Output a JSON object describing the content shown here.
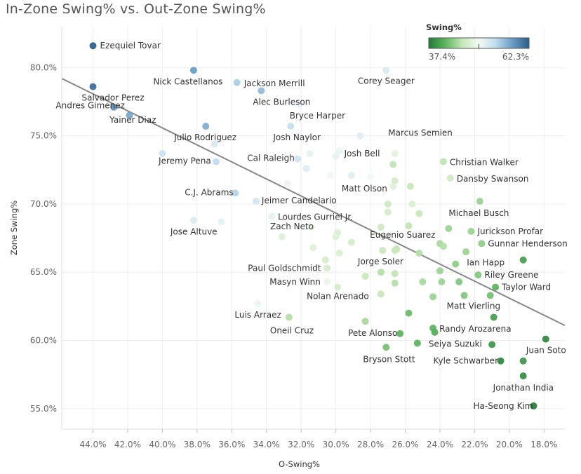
{
  "title": "In-Zone Swing% vs. Out-Zone Swing%",
  "chart_data": {
    "type": "scatter",
    "title": "In-Zone Swing% vs. Out-Zone Swing%",
    "xlabel": "O-Swing%",
    "ylabel": "Zone Swing%",
    "x_reversed": true,
    "xlim": [
      45.8,
      16.8
    ],
    "ylim": [
      53.5,
      83.0
    ],
    "x_ticks": [
      44,
      42,
      40,
      38,
      36,
      34,
      32,
      30,
      28,
      26,
      24,
      22,
      20,
      18
    ],
    "x_tick_labels": [
      "44.0%",
      "42.0%",
      "40.0%",
      "38.0%",
      "36.0%",
      "34.0%",
      "32.0%",
      "30.0%",
      "28.0%",
      "26.0%",
      "24.0%",
      "22.0%",
      "20.0%",
      "18.0%"
    ],
    "y_ticks": [
      55,
      60,
      65,
      70,
      75,
      80
    ],
    "y_tick_labels": [
      "55.0%",
      "60.0%",
      "65.0%",
      "70.0%",
      "75.0%",
      "80.0%"
    ],
    "grid": true,
    "color_legend": {
      "title": "Swing%",
      "min": 37.4,
      "max": 62.3,
      "min_label": "37.4%",
      "max_label": "62.3%",
      "colors": [
        "#1f7a35",
        "#5fb660",
        "#c6e7b8",
        "#f4f9f4",
        "#bfdcee",
        "#6a9cc5",
        "#2d5c8a"
      ]
    },
    "trend_line": {
      "x1": 45.8,
      "y1": 79.2,
      "x2": 16.8,
      "y2": 61.1,
      "color": "#888888"
    },
    "points": [
      {
        "name": "Ezequiel Tovar",
        "x": 44.0,
        "y": 81.6,
        "swing": 62.0
      },
      {
        "name": "Nick Castellanos",
        "x": 38.2,
        "y": 79.8,
        "swing": 58.0
      },
      {
        "name": "Jackson Merrill",
        "x": 35.7,
        "y": 78.9,
        "swing": 55.0
      },
      {
        "name": "Corey Seager",
        "x": 27.1,
        "y": 79.8,
        "swing": 52.0
      },
      {
        "name": "Alec Burleson",
        "x": 34.3,
        "y": 78.3,
        "swing": 56.0
      },
      {
        "name": "Salvador Perez",
        "x": 44.0,
        "y": 78.6,
        "swing": 61.0
      },
      {
        "name": "Bryce Harper",
        "x": 32.1,
        "y": 77.3,
        "swing": 51.0
      },
      {
        "name": "Yainer Diaz",
        "x": 42.8,
        "y": 77.1,
        "swing": 58.5
      },
      {
        "name": "Andres Gimenez",
        "x": 41.9,
        "y": 76.5,
        "swing": 57.5
      },
      {
        "name": "Marcus Semien",
        "x": 28.6,
        "y": 75.0,
        "swing": 51.5
      },
      {
        "name": "Josh Naylor",
        "x": 32.6,
        "y": 75.7,
        "swing": 53.5
      },
      {
        "name": "Julio Rodriguez",
        "x": 37.5,
        "y": 75.7,
        "swing": 57.0
      },
      {
        "name": "Cal Raleigh",
        "x": 32.2,
        "y": 73.3,
        "swing": 52.5
      },
      {
        "name": "Josh Bell",
        "x": 30.0,
        "y": 73.5,
        "swing": 51.0
      },
      {
        "name": "Christian Walker",
        "x": 23.8,
        "y": 73.1,
        "swing": 45.5
      },
      {
        "name": "Dansby Swanson",
        "x": 23.4,
        "y": 71.9,
        "swing": 46.5
      },
      {
        "name": "Jeremy Pena",
        "x": 36.9,
        "y": 73.1,
        "swing": 54.0
      },
      {
        "name": "Matt Olson",
        "x": 29.1,
        "y": 72.1,
        "swing": 51.5
      },
      {
        "name": "C.J. Abrams",
        "x": 35.8,
        "y": 70.8,
        "swing": 54.5
      },
      {
        "name": "Jeimer Candelario",
        "x": 34.6,
        "y": 70.2,
        "swing": 52.5
      },
      {
        "name": "Lourdes Gurriel Jr.",
        "x": 33.7,
        "y": 69.1,
        "swing": 51.0
      },
      {
        "name": "Michael Busch",
        "x": 23.5,
        "y": 68.2,
        "swing": 44.0
      },
      {
        "name": "Jose Altuve",
        "x": 38.2,
        "y": 68.8,
        "swing": 52.0
      },
      {
        "name": "Zach Neto",
        "x": 31.4,
        "y": 68.3,
        "swing": 48.5
      },
      {
        "name": "Jurickson Profar",
        "x": 22.2,
        "y": 68.0,
        "swing": 44.0
      },
      {
        "name": "Eugenio Suarez",
        "x": 26.5,
        "y": 66.7,
        "swing": 45.5
      },
      {
        "name": "Gunnar Henderson",
        "x": 21.6,
        "y": 67.1,
        "swing": 43.5
      },
      {
        "name": "Ian Happ",
        "x": 23.1,
        "y": 65.6,
        "swing": 43.5
      },
      {
        "name": "Jorge Soler",
        "x": 27.4,
        "y": 65.0,
        "swing": 45.0
      },
      {
        "name": "Paul Goldschmidt",
        "x": 30.5,
        "y": 65.3,
        "swing": 47.0
      },
      {
        "name": "Riley Greene",
        "x": 21.8,
        "y": 64.8,
        "swing": 43.0
      },
      {
        "name": "Masyn Winn",
        "x": 30.5,
        "y": 64.3,
        "swing": 49.0
      },
      {
        "name": "Taylor Ward",
        "x": 20.8,
        "y": 63.9,
        "swing": 41.5
      },
      {
        "name": "Nolan Arenado",
        "x": 29.9,
        "y": 63.9,
        "swing": 47.0
      },
      {
        "name": "Matt Vierling",
        "x": 21.1,
        "y": 63.3,
        "swing": 42.5
      },
      {
        "name": "Luis Arraez",
        "x": 34.5,
        "y": 62.7,
        "swing": 50.5
      },
      {
        "name": "Oneil Cruz",
        "x": 32.7,
        "y": 61.7,
        "swing": 45.0
      },
      {
        "name": "Randy Arozarena",
        "x": 24.4,
        "y": 60.9,
        "swing": 41.5
      },
      {
        "name": "Pete Alonso",
        "x": 26.3,
        "y": 60.5,
        "swing": 41.5
      },
      {
        "name": "Seiya Suzuki",
        "x": 25.3,
        "y": 59.8,
        "swing": 41.5
      },
      {
        "name": "Juan Soto",
        "x": 17.9,
        "y": 60.1,
        "swing": 38.5
      },
      {
        "name": "Bryson Stott",
        "x": 27.1,
        "y": 59.5,
        "swing": 42.5
      },
      {
        "name": "Kyle Schwarber",
        "x": 20.5,
        "y": 58.5,
        "swing": 38.5
      },
      {
        "name": "Jonathan India",
        "x": 19.2,
        "y": 57.4,
        "swing": 39.0
      },
      {
        "name": "Ha-Seong Kim",
        "x": 18.6,
        "y": 55.2,
        "swing": 38.0
      },
      {
        "name": "",
        "x": 40.0,
        "y": 73.7,
        "swing": 53.0
      },
      {
        "name": "",
        "x": 37.0,
        "y": 74.4,
        "swing": 52.0
      },
      {
        "name": "",
        "x": 31.5,
        "y": 73.7,
        "swing": 51.0
      },
      {
        "name": "",
        "x": 31.7,
        "y": 72.6,
        "swing": 51.5
      },
      {
        "name": "",
        "x": 30.3,
        "y": 72.1,
        "swing": 50.0
      },
      {
        "name": "",
        "x": 29.8,
        "y": 73.9,
        "swing": 50.5
      },
      {
        "name": "",
        "x": 28.0,
        "y": 72.0,
        "swing": 50.0
      },
      {
        "name": "",
        "x": 26.6,
        "y": 73.7,
        "swing": 48.5
      },
      {
        "name": "",
        "x": 26.7,
        "y": 72.9,
        "swing": 45.5
      },
      {
        "name": "",
        "x": 26.6,
        "y": 71.7,
        "swing": 47.0
      },
      {
        "name": "",
        "x": 26.7,
        "y": 71.3,
        "swing": 48.0
      },
      {
        "name": "",
        "x": 32.8,
        "y": 71.5,
        "swing": 50.5
      },
      {
        "name": "",
        "x": 36.6,
        "y": 68.7,
        "swing": 51.0
      },
      {
        "name": "",
        "x": 33.1,
        "y": 67.6,
        "swing": 48.0
      },
      {
        "name": "",
        "x": 27.0,
        "y": 70.0,
        "swing": 46.5
      },
      {
        "name": "",
        "x": 27.0,
        "y": 69.4,
        "swing": 47.0
      },
      {
        "name": "",
        "x": 25.6,
        "y": 70.0,
        "swing": 47.5
      },
      {
        "name": "",
        "x": 25.7,
        "y": 71.3,
        "swing": 46.0
      },
      {
        "name": "",
        "x": 25.2,
        "y": 69.3,
        "swing": 46.0
      },
      {
        "name": "",
        "x": 27.4,
        "y": 68.3,
        "swing": 46.5
      },
      {
        "name": "",
        "x": 25.8,
        "y": 68.4,
        "swing": 45.5
      },
      {
        "name": "",
        "x": 21.7,
        "y": 70.2,
        "swing": 44.0
      },
      {
        "name": "",
        "x": 29.9,
        "y": 67.9,
        "swing": 47.5
      },
      {
        "name": "",
        "x": 30.0,
        "y": 67.6,
        "swing": 48.0
      },
      {
        "name": "",
        "x": 29.1,
        "y": 67.2,
        "swing": 47.0
      },
      {
        "name": "",
        "x": 31.3,
        "y": 66.8,
        "swing": 48.0
      },
      {
        "name": "",
        "x": 29.8,
        "y": 66.4,
        "swing": 47.5
      },
      {
        "name": "",
        "x": 27.3,
        "y": 66.6,
        "swing": 46.0
      },
      {
        "name": "",
        "x": 26.6,
        "y": 66.6,
        "swing": 46.0
      },
      {
        "name": "",
        "x": 25.2,
        "y": 66.4,
        "swing": 45.0
      },
      {
        "name": "",
        "x": 24.0,
        "y": 67.1,
        "swing": 44.5
      },
      {
        "name": "",
        "x": 23.8,
        "y": 66.9,
        "swing": 45.0
      },
      {
        "name": "",
        "x": 22.5,
        "y": 66.5,
        "swing": 44.0
      },
      {
        "name": "",
        "x": 30.6,
        "y": 65.9,
        "swing": 47.0
      },
      {
        "name": "",
        "x": 28.3,
        "y": 64.7,
        "swing": 46.0
      },
      {
        "name": "",
        "x": 26.6,
        "y": 64.9,
        "swing": 45.5
      },
      {
        "name": "",
        "x": 26.6,
        "y": 64.2,
        "swing": 45.0
      },
      {
        "name": "",
        "x": 25.0,
        "y": 64.3,
        "swing": 44.5
      },
      {
        "name": "",
        "x": 24.0,
        "y": 65.1,
        "swing": 44.0
      },
      {
        "name": "",
        "x": 23.9,
        "y": 64.3,
        "swing": 44.0
      },
      {
        "name": "",
        "x": 22.9,
        "y": 64.3,
        "swing": 43.0
      },
      {
        "name": "",
        "x": 19.2,
        "y": 65.9,
        "swing": 40.0
      },
      {
        "name": "",
        "x": 27.4,
        "y": 63.4,
        "swing": 46.0
      },
      {
        "name": "",
        "x": 24.4,
        "y": 63.2,
        "swing": 44.0
      },
      {
        "name": "",
        "x": 22.6,
        "y": 63.3,
        "swing": 43.0
      },
      {
        "name": "",
        "x": 25.8,
        "y": 62.0,
        "swing": 42.0
      },
      {
        "name": "",
        "x": 28.3,
        "y": 61.4,
        "swing": 44.5
      },
      {
        "name": "",
        "x": 20.9,
        "y": 61.7,
        "swing": 40.0
      },
      {
        "name": "",
        "x": 24.3,
        "y": 60.6,
        "swing": 41.0
      },
      {
        "name": "",
        "x": 21.0,
        "y": 59.7,
        "swing": 39.5
      },
      {
        "name": "",
        "x": 19.2,
        "y": 58.5,
        "swing": 39.5
      }
    ]
  }
}
